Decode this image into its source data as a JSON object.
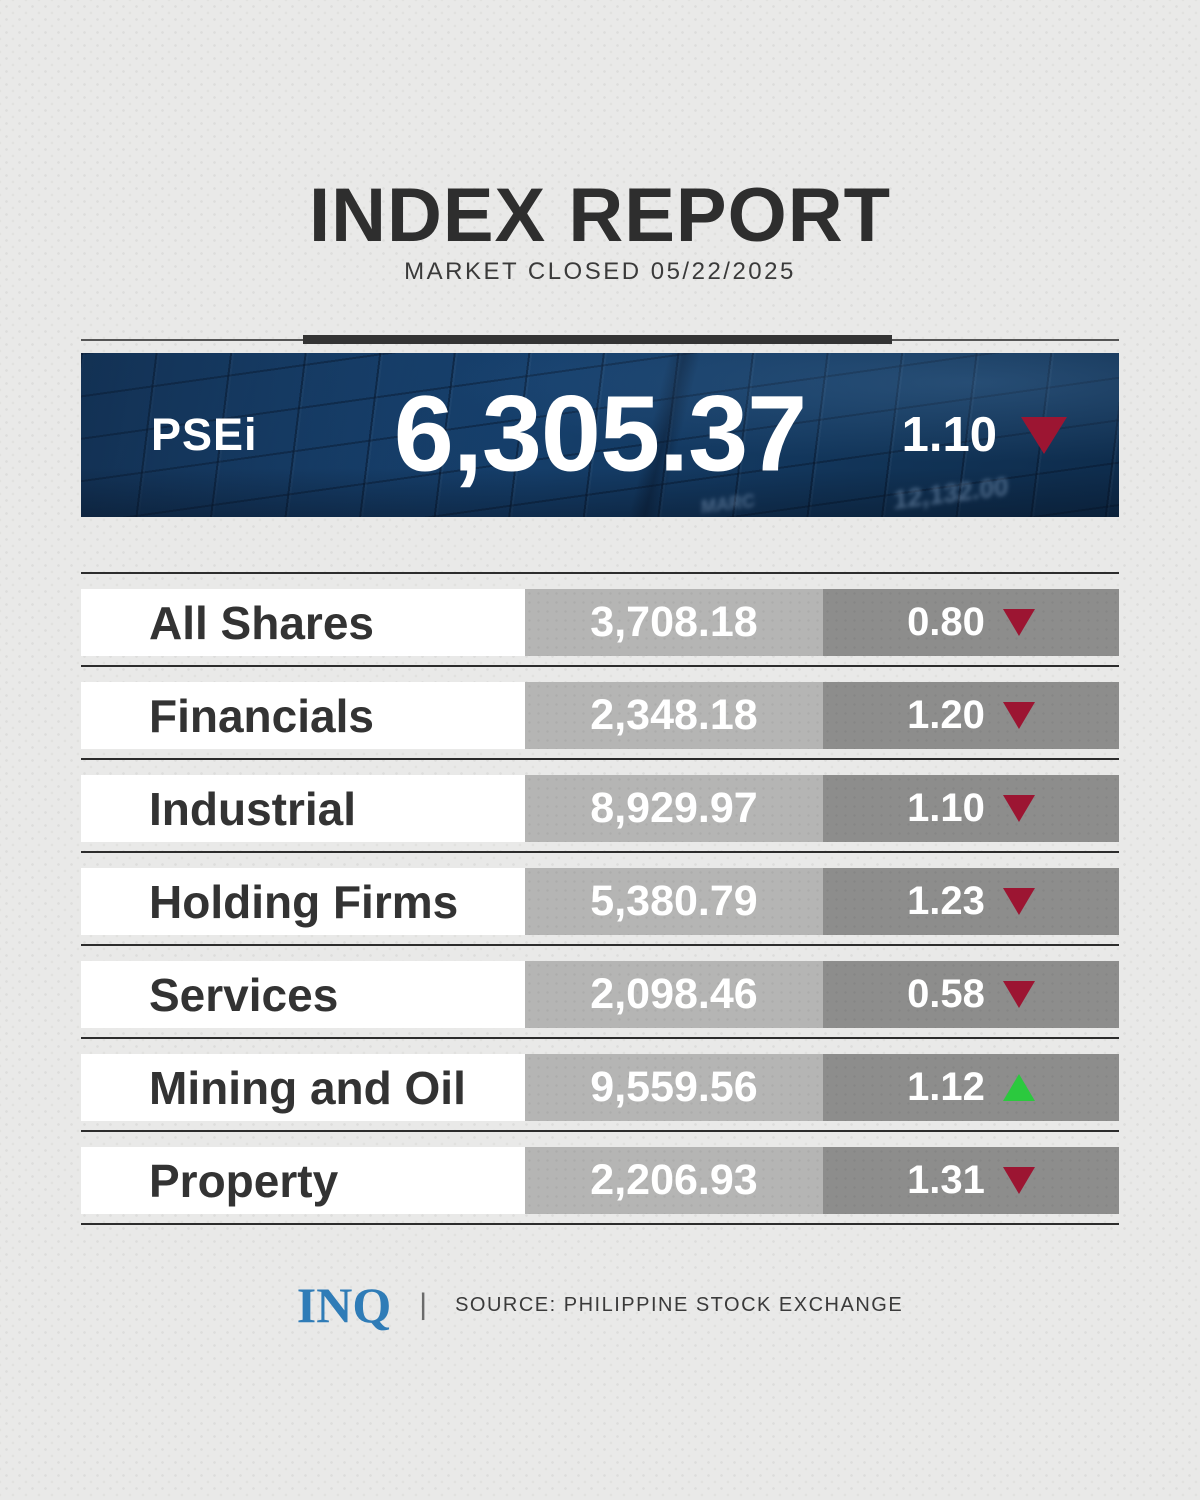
{
  "header": {
    "title": "INDEX REPORT",
    "subtitle": "MARKET CLOSED 05/22/2025"
  },
  "banner": {
    "index_label": "PSEi",
    "index_value": "6,305.37",
    "change_value": "1.10",
    "direction": "down",
    "photo_ticker_text_1": "12,132.00",
    "photo_ticker_text_2": "MARC"
  },
  "table": {
    "rows": [
      {
        "name": "All Shares",
        "value": "3,708.18",
        "change": "0.80",
        "direction": "down"
      },
      {
        "name": "Financials",
        "value": "2,348.18",
        "change": "1.20",
        "direction": "down"
      },
      {
        "name": "Industrial",
        "value": "8,929.97",
        "change": "1.10",
        "direction": "down"
      },
      {
        "name": "Holding Firms",
        "value": "5,380.79",
        "change": "1.23",
        "direction": "down"
      },
      {
        "name": "Services",
        "value": "2,098.46",
        "change": "0.58",
        "direction": "down"
      },
      {
        "name": "Mining and Oil",
        "value": "9,559.56",
        "change": "1.12",
        "direction": "up"
      },
      {
        "name": "Property",
        "value": "2,206.93",
        "change": "1.31",
        "direction": "down"
      }
    ]
  },
  "footer": {
    "logo": "INQ",
    "divider": "|",
    "source": "SOURCE: PHILIPPINE STOCK EXCHANGE"
  },
  "colors": {
    "down_color": "#9c1532",
    "up_color": "#2bc93e",
    "banner_navy": "#143d68",
    "logo_blue": "#2f7cb7",
    "value_cell": "#b5b5b4",
    "change_cell": "#8d8d8c"
  },
  "chart_data": {
    "type": "table",
    "title": "INDEX REPORT",
    "subtitle": "MARKET CLOSED 05/22/2025",
    "headline": {
      "index": "PSEi",
      "value": 6305.37,
      "change_pct": 1.1,
      "direction": "down"
    },
    "columns": [
      "index",
      "value",
      "change_pct",
      "direction"
    ],
    "rows": [
      [
        "All Shares",
        3708.18,
        0.8,
        "down"
      ],
      [
        "Financials",
        2348.18,
        1.2,
        "down"
      ],
      [
        "Industrial",
        8929.97,
        1.1,
        "down"
      ],
      [
        "Holding Firms",
        5380.79,
        1.23,
        "down"
      ],
      [
        "Services",
        2098.46,
        0.58,
        "down"
      ],
      [
        "Mining and Oil",
        9559.56,
        1.12,
        "up"
      ],
      [
        "Property",
        2206.93,
        1.31,
        "down"
      ]
    ],
    "source": "SOURCE: PHILIPPINE STOCK EXCHANGE"
  }
}
